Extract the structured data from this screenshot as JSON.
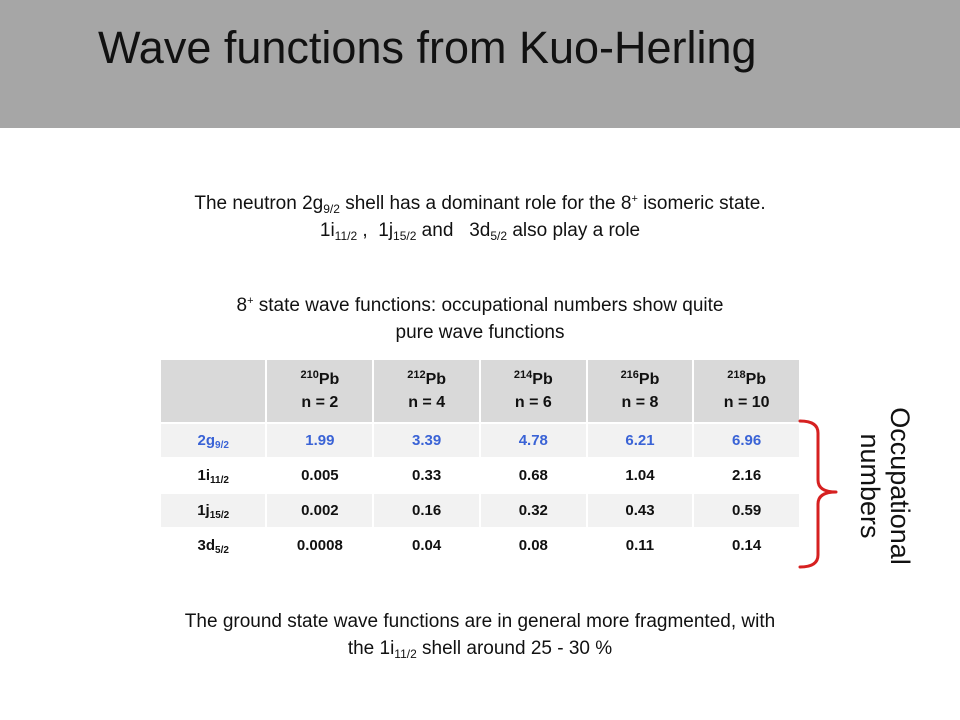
{
  "header": {
    "title": "Wave functions from Kuo-Herling"
  },
  "intro": {
    "l1_a": "The neutron 2g",
    "l1_sub": "9/2",
    "l1_b": " shell has a dominant role for the 8",
    "l1_sup": "+",
    "l1_c": " isomeric state.",
    "l2_a": "1i",
    "l2_sub1": "11/2",
    "l2_b": " ,  1j",
    "l2_sub2": "15/2",
    "l2_c": " and   3d",
    "l2_sub3": "5/2",
    "l2_d": " also play a role"
  },
  "state": {
    "l1_a": "8",
    "l1_sup": "+",
    "l1_b": " state wave functions: occupational numbers show quite",
    "l2": "pure wave functions"
  },
  "table": {
    "columns": [
      {
        "mass": "210",
        "el": "Pb",
        "n": "n = 2"
      },
      {
        "mass": "212",
        "el": "Pb",
        "n": "n = 4"
      },
      {
        "mass": "214",
        "el": "Pb",
        "n": "n = 6"
      },
      {
        "mass": "216",
        "el": "Pb",
        "n": "n = 8"
      },
      {
        "mass": "218",
        "el": "Pb",
        "n": "n = 10"
      }
    ],
    "rows": [
      {
        "orb": "2g",
        "sub": "9/2",
        "values": [
          "1.99",
          "3.39",
          "4.78",
          "6.21",
          "6.96"
        ]
      },
      {
        "orb": "1i",
        "sub": "11/2",
        "values": [
          "0.005",
          "0.33",
          "0.68",
          "1.04",
          "2.16"
        ]
      },
      {
        "orb": "1j",
        "sub": "15/2",
        "values": [
          "0.002",
          "0.16",
          "0.32",
          "0.43",
          "0.59"
        ]
      },
      {
        "orb": "3d",
        "sub": "5/2",
        "values": [
          "0.0008",
          "0.04",
          "0.08",
          "0.11",
          "0.14"
        ]
      }
    ]
  },
  "side_label": {
    "l1": "Occupational",
    "l2": "numbers"
  },
  "footer": {
    "l1": "The ground state wave functions are in general more fragmented, with",
    "l2_a": "the 1i",
    "l2_sub": "11/2",
    "l2_b": " shell around 25 - 30 %"
  },
  "colors": {
    "header_bg": "#a6a6a6",
    "highlight_row": "#3a63d6",
    "brace": "#d62020"
  }
}
